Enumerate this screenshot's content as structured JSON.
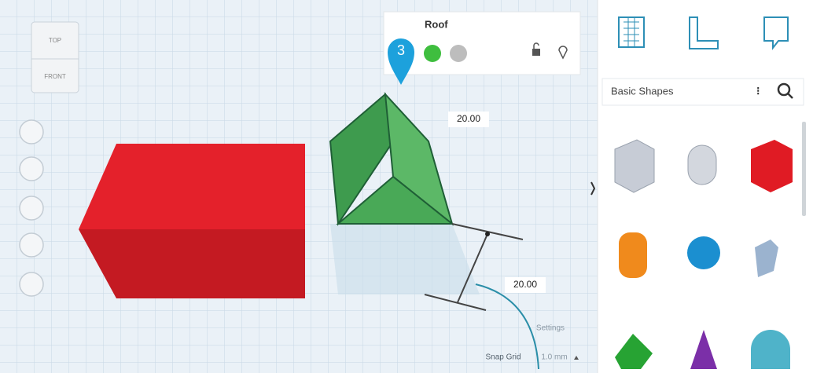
{
  "view_cube": {
    "top": "TOP",
    "front": "FRONT"
  },
  "inspector": {
    "title": "Roof",
    "step_badge": "3"
  },
  "dimensions": [
    "20.00",
    "20.00"
  ],
  "panel": {
    "category": "Basic Shapes"
  },
  "footer": {
    "settings": "Settings",
    "snap_grid_label": "Snap Grid",
    "snap_grid_value": "1.0 mm"
  }
}
